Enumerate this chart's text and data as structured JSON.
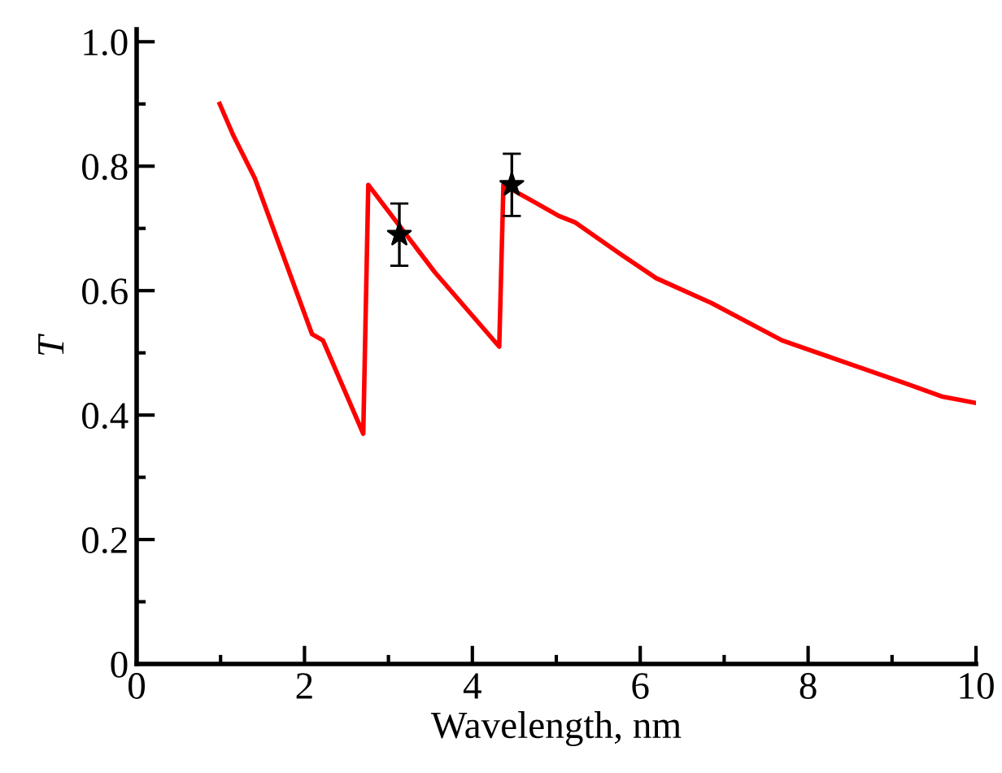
{
  "chart_data": {
    "type": "line",
    "xlabel": "Wavelength, nm",
    "ylabel": "T",
    "xlim": [
      0,
      10
    ],
    "ylim": [
      0,
      1.02
    ],
    "xticks": [
      0,
      2,
      4,
      6,
      8,
      10
    ],
    "yticks": [
      0,
      0.2,
      0.4,
      0.6,
      {
        "value": 0.8,
        "label": "0.8"
      },
      {
        "value": 1.0,
        "label": "1.0"
      }
    ],
    "grid": false,
    "legend": false,
    "series": [
      {
        "color": "#ff0000",
        "marker": "none",
        "line_style": "solid",
        "x": [
          0.99,
          1.15,
          1.41,
          2.09,
          2.22,
          2.7,
          2.76,
          3.55,
          4.32,
          4.37,
          4.77,
          5.03,
          5.22,
          5.75,
          6.19,
          6.85,
          7.69,
          8.33,
          9.18,
          9.59,
          9.98
        ],
        "values": [
          0.9,
          0.85,
          0.78,
          0.53,
          0.52,
          0.37,
          0.77,
          0.63,
          0.51,
          0.77,
          0.74,
          0.72,
          0.71,
          0.66,
          0.62,
          0.58,
          0.52,
          0.49,
          0.45,
          0.43,
          0.42
        ]
      },
      {
        "type": "scatter",
        "color": "#000000",
        "marker": "star",
        "x": [
          3.13,
          4.47
        ],
        "values": [
          0.69,
          0.77
        ],
        "errors": [
          0.05,
          0.05
        ]
      }
    ]
  }
}
